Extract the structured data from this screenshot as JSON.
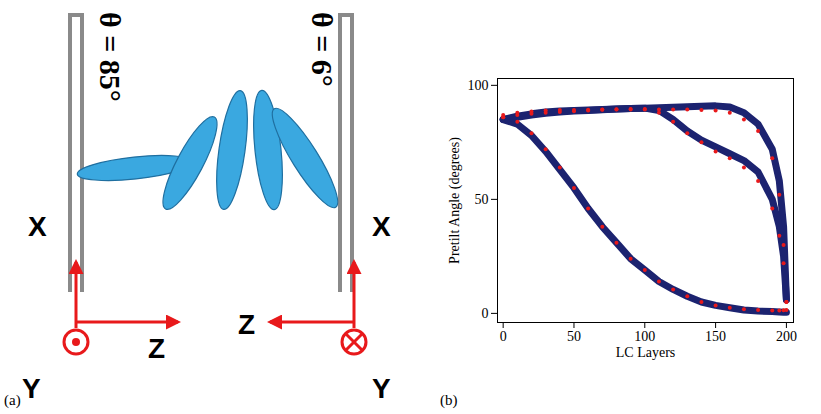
{
  "panel_labels": [
    "(a)",
    "(b)"
  ],
  "diagram": {
    "left_frame": {
      "x_label": "X",
      "y_label": "Y",
      "z_label": "Z",
      "angle_label": "θ = 85°"
    },
    "right_frame": {
      "x_label": "X",
      "y_label": "Y",
      "z_label": "Z",
      "angle_label": "θ = 6°"
    }
  },
  "chart_data": {
    "type": "line",
    "x_label": "LC Layers",
    "y_label": "Pretilt Angle (degrees)",
    "x": [
      0,
      10,
      20,
      30,
      40,
      50,
      60,
      70,
      80,
      90,
      100,
      110,
      120,
      130,
      140,
      150,
      160,
      170,
      180,
      190,
      195,
      198,
      200
    ],
    "series": [
      {
        "type": "line",
        "line_style": "solid",
        "color": "#1c2370",
        "values": [
          85,
          83,
          78,
          71,
          63,
          55,
          46,
          38,
          31,
          24,
          19,
          14,
          10.5,
          7.5,
          5,
          3.5,
          2.5,
          1.5,
          1,
          0.8,
          0.6,
          0.5,
          0.5
        ]
      },
      {
        "type": "line",
        "line_style": "solid",
        "color": "#1c2370",
        "values": [
          85,
          86.5,
          87.5,
          88.3,
          88.8,
          89,
          89.2,
          89.4,
          89.6,
          89.8,
          90,
          90.2,
          90.4,
          90.6,
          90.8,
          91,
          90.5,
          88,
          83,
          72,
          58,
          38,
          6
        ]
      },
      {
        "type": "line",
        "line_style": "solid",
        "color": "#1c2370",
        "values": [
          85,
          86,
          87,
          87.8,
          88.3,
          88.7,
          89,
          89.3,
          89.6,
          89.8,
          90,
          89,
          85,
          80,
          76,
          73,
          70,
          67,
          62,
          50,
          38,
          25,
          6
        ]
      },
      {
        "type": "scatter",
        "marker": "circle",
        "color": "#e8191b",
        "values": [
          86,
          84,
          79,
          72,
          64,
          55,
          46,
          38,
          31,
          24,
          19,
          14,
          10.5,
          7.5,
          5,
          3.5,
          2.5,
          1.8,
          1.5,
          1.3,
          1.3,
          1.4,
          1.5
        ]
      },
      {
        "type": "scatter",
        "marker": "circle",
        "color": "#e8191b",
        "values": [
          87,
          88,
          88.5,
          89,
          89.2,
          89.2,
          89.3,
          89.4,
          89.4,
          89.4,
          89.4,
          89.4,
          89.4,
          89.4,
          89.2,
          89,
          88,
          85,
          80,
          68,
          52,
          30,
          5
        ]
      },
      {
        "type": "scatter",
        "marker": "circle",
        "color": "#e8191b",
        "values": [
          86,
          87,
          87.5,
          88,
          88.3,
          88.6,
          89,
          89.3,
          89.5,
          89.6,
          89.6,
          88,
          84,
          79,
          75,
          71,
          68,
          64,
          58,
          46,
          34,
          22,
          5
        ]
      }
    ],
    "xlim": [
      -4,
      205
    ],
    "ylim": [
      -4,
      103
    ],
    "xticks": [
      0,
      50,
      100,
      150,
      200
    ],
    "yticks": [
      0,
      50,
      100
    ],
    "grid": false
  }
}
